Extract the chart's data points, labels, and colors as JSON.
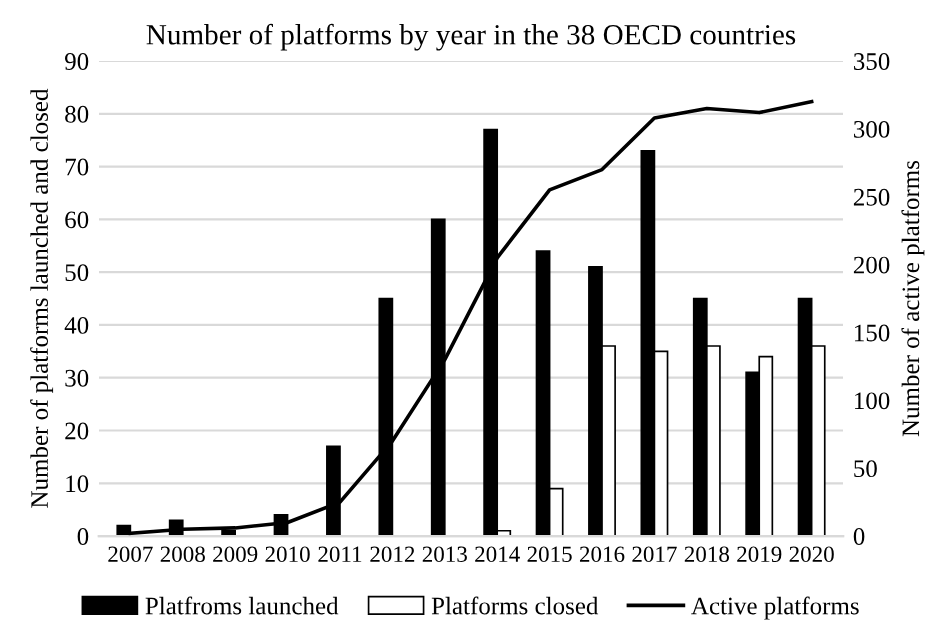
{
  "chart_data": {
    "type": "bar",
    "title": "Number of platforms by year in the 38 OECD countries",
    "ylabel": "Number of platforms launched and closed",
    "y2label": "Number of active platforms",
    "categories": [
      "2007",
      "2008",
      "2009",
      "2010",
      "2011",
      "2012",
      "2013",
      "2014",
      "2015",
      "2016",
      "2017",
      "2018",
      "2019",
      "2020"
    ],
    "series": [
      {
        "name": "Platfroms launched",
        "color": "#000000",
        "values": [
          2,
          3,
          1,
          4,
          17,
          45,
          60,
          77,
          54,
          51,
          73,
          45,
          31,
          45
        ]
      },
      {
        "name": "Platforms closed",
        "color": "#ffffff",
        "values": [
          null,
          null,
          null,
          null,
          null,
          null,
          null,
          1,
          9,
          36,
          35,
          36,
          34,
          36
        ]
      },
      {
        "name": "Active platforms",
        "type": "line",
        "axis": "y2",
        "color": "#000000",
        "values": [
          2,
          5,
          6,
          10,
          25,
          70,
          130,
          205,
          255,
          270,
          308,
          315,
          312,
          320
        ]
      }
    ],
    "ylim": [
      0,
      90
    ],
    "yticks": [
      0,
      10,
      20,
      30,
      40,
      50,
      60,
      70,
      80,
      90
    ],
    "y2lim": [
      0,
      350
    ],
    "y2ticks": [
      0,
      50,
      100,
      150,
      200,
      250,
      300,
      350
    ],
    "grid": "y",
    "legend": "bottom",
    "marker": "none",
    "line_style": "solid"
  }
}
